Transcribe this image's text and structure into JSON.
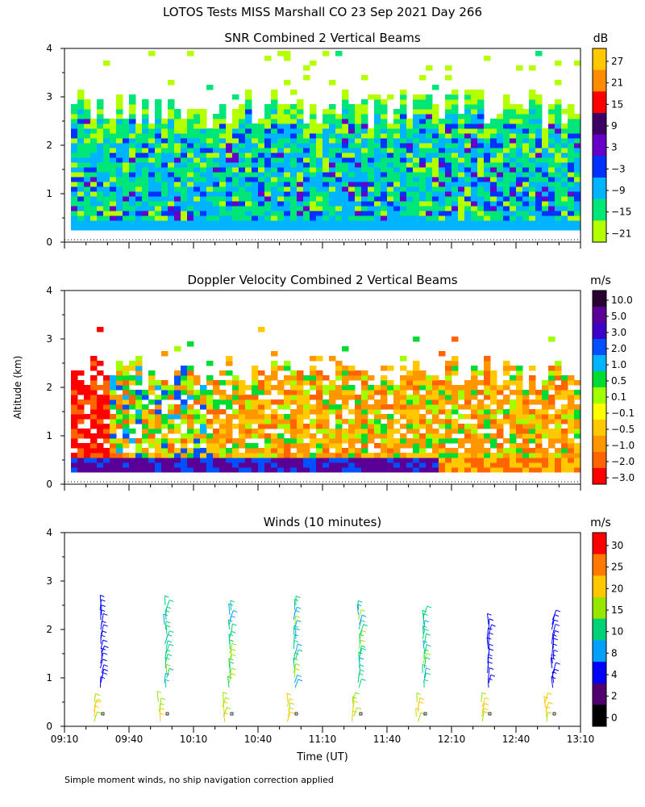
{
  "page": {
    "title": "LOTOS Tests MISS Marshall CO  23 Sep 2021 Day 266",
    "y_axis_label": "Altitude (km)",
    "x_axis_label": "Time (UT)",
    "footnote": "Simple moment winds, no ship navigation correction applied"
  },
  "chart_data": [
    {
      "type": "heatmap",
      "title": "SNR Combined 2 Vertical Beams",
      "unit": "dB",
      "ylim": [
        0,
        4
      ],
      "y_ticks": [
        "0",
        "1",
        "2",
        "3",
        "4"
      ],
      "x_range_hours": [
        9.1667,
        13.1667
      ],
      "colorbar": {
        "labels": [
          "27",
          "21",
          "15",
          "9",
          "3",
          "−3",
          "−9",
          "−15",
          "−21"
        ],
        "colors": [
          "#ffc800",
          "#ff8c00",
          "#ff0000",
          "#3c0064",
          "#6400c8",
          "#0032ff",
          "#00b4ff",
          "#00e678",
          "#b4ff00"
        ]
      },
      "grid": false
    },
    {
      "type": "heatmap",
      "title": "Doppler Velocity Combined 2 Vertical Beams",
      "unit": "m/s",
      "ylim": [
        0,
        4
      ],
      "y_ticks": [
        "0",
        "1",
        "2",
        "3",
        "4"
      ],
      "x_range_hours": [
        9.1667,
        13.1667
      ],
      "colorbar": {
        "labels": [
          "10.0",
          "5.0",
          "3.0",
          "2.0",
          "1.0",
          "0.5",
          "0.1",
          "−0.1",
          "−0.5",
          "−1.0",
          "−2.0",
          "−3.0"
        ],
        "colors": [
          "#2a0030",
          "#5a0096",
          "#3c00c8",
          "#0050ff",
          "#00b4ff",
          "#00dc32",
          "#a0ff00",
          "#ffff00",
          "#ffc800",
          "#ff9600",
          "#ff6400",
          "#ff0000"
        ]
      },
      "grid": false
    },
    {
      "type": "scatter",
      "title": "Winds (10 minutes)",
      "unit": "m/s",
      "ylim": [
        0,
        4
      ],
      "y_ticks": [
        "0",
        "1",
        "2",
        "3",
        "4"
      ],
      "x_ticks": [
        "09:10",
        "09:40",
        "10:10",
        "10:40",
        "11:10",
        "11:40",
        "12:10",
        "12:40",
        "13:10"
      ],
      "x_tick_hours": [
        9.1667,
        9.6667,
        10.1667,
        10.6667,
        11.1667,
        11.6667,
        12.1667,
        12.6667,
        13.1667
      ],
      "profile_times_hours": [
        9.4667,
        9.9667,
        10.4667,
        10.9667,
        11.4667,
        11.9667,
        12.4667,
        12.9667
      ],
      "profile_tops_km": [
        2.6,
        2.55,
        2.45,
        2.55,
        2.45,
        2.35,
        2.2,
        2.3
      ],
      "colorbar": {
        "labels": [
          "30",
          "25",
          "20",
          "15",
          "10",
          "8",
          "4",
          "2",
          "0"
        ],
        "colors": [
          "#ff0000",
          "#ff7800",
          "#ffc800",
          "#96e600",
          "#00d278",
          "#00a0ff",
          "#0000ff",
          "#50006e",
          "#000000"
        ]
      },
      "grid": false
    }
  ]
}
